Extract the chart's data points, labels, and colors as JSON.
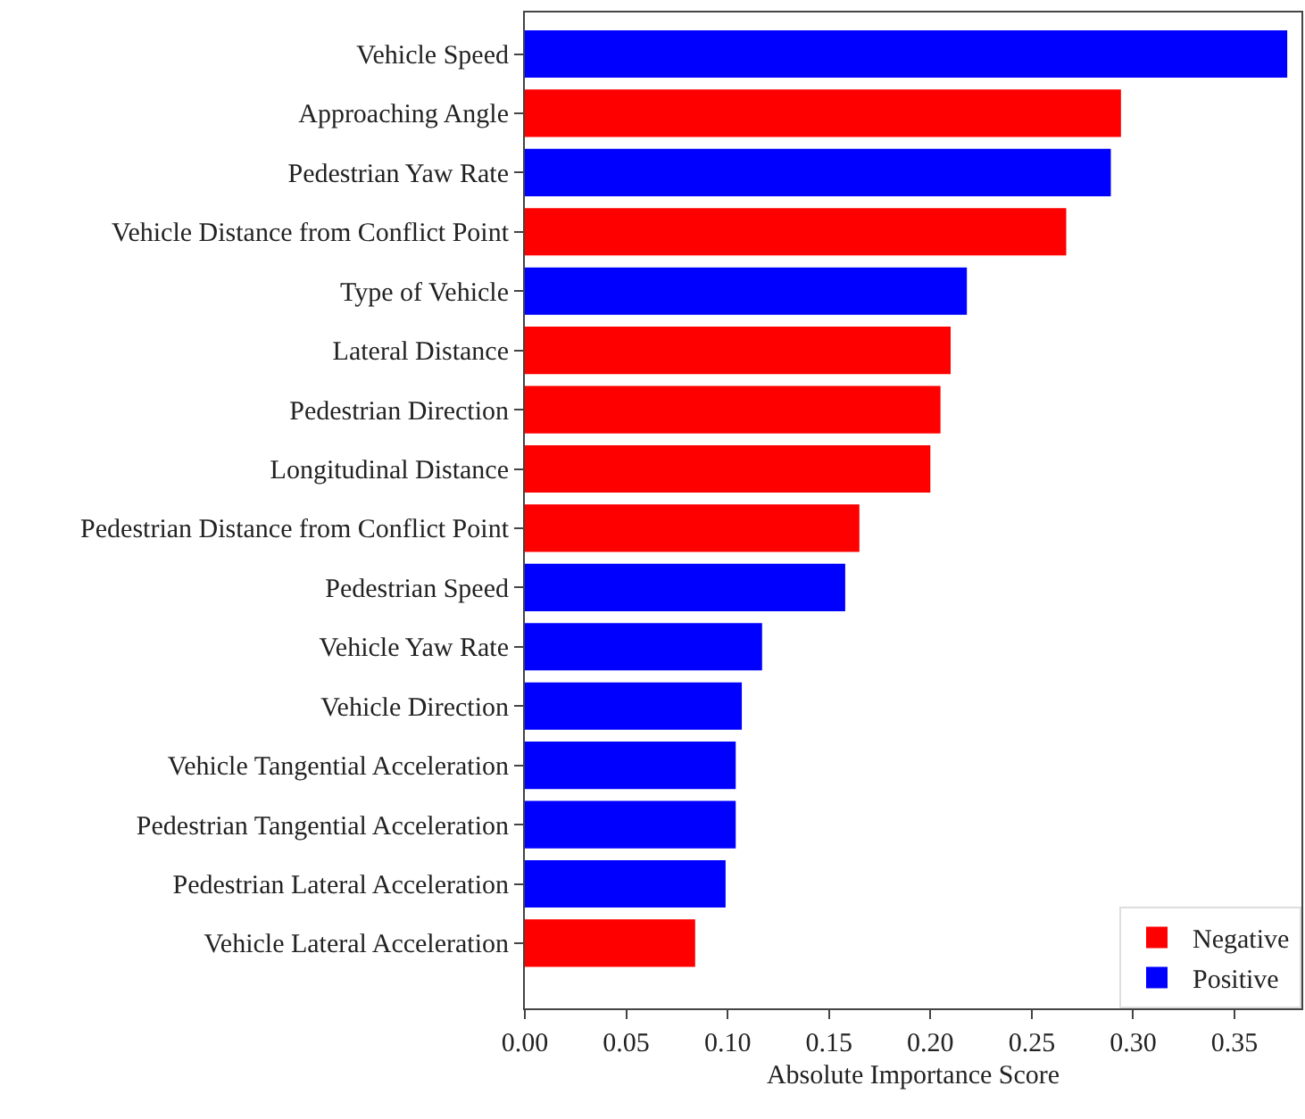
{
  "chart_data": {
    "type": "bar",
    "orientation": "horizontal",
    "xlabel": "Absolute Importance Score",
    "categories": [
      "Vehicle Speed",
      "Approaching Angle",
      "Pedestrian Yaw Rate",
      "Vehicle Distance from Conflict Point",
      "Type of Vehicle",
      "Lateral Distance",
      "Pedestrian Direction",
      "Longitudinal Distance",
      "Pedestrian Distance from Conflict Point",
      "Pedestrian Speed",
      "Vehicle Yaw Rate",
      "Vehicle Direction",
      "Vehicle Tangential Acceleration",
      "Pedestrian Tangential Acceleration",
      "Pedestrian Lateral Acceleration",
      "Vehicle Lateral Acceleration"
    ],
    "series": [
      {
        "name": "Negative",
        "color": "#ff0000",
        "values": [
          null,
          0.294,
          null,
          0.267,
          null,
          0.21,
          0.205,
          0.2,
          0.165,
          null,
          null,
          null,
          null,
          null,
          null,
          0.084
        ]
      },
      {
        "name": "Positive",
        "color": "#0000ff",
        "values": [
          0.376,
          null,
          0.289,
          null,
          0.218,
          null,
          null,
          null,
          null,
          0.158,
          0.117,
          0.107,
          0.104,
          0.104,
          0.099,
          null
        ]
      }
    ],
    "xlim": [
      0,
      0.383
    ],
    "xticks": [
      {
        "value": 0,
        "label": "0.00"
      },
      {
        "value": 0.05,
        "label": "0.05"
      },
      {
        "value": 0.1,
        "label": "0.10"
      },
      {
        "value": 0.15,
        "label": "0.15"
      },
      {
        "value": 0.2,
        "label": "0.20"
      },
      {
        "value": 0.25,
        "label": "0.25"
      },
      {
        "value": 0.3,
        "label": "0.30"
      },
      {
        "value": 0.35,
        "label": "0.35"
      }
    ],
    "grid": false,
    "legend": "bottom right"
  }
}
